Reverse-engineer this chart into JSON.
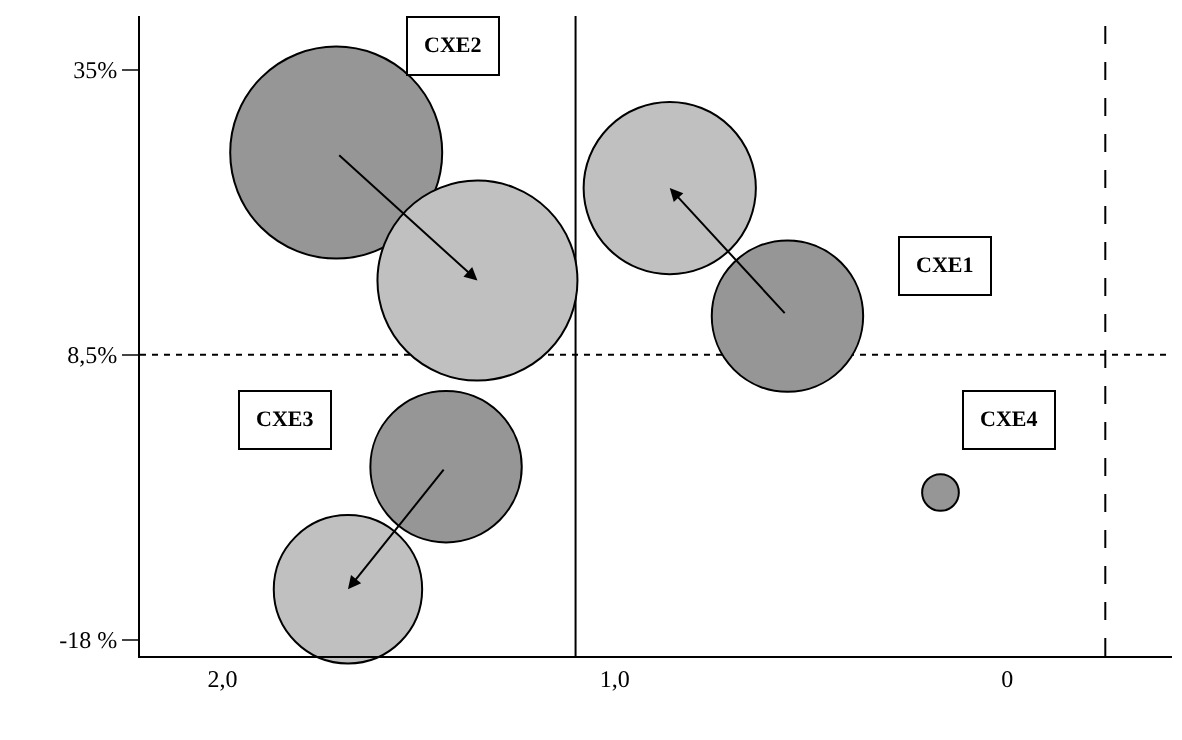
{
  "chart_data": {
    "type": "bubble",
    "xlim": [
      2.21,
      -0.42
    ],
    "ylim": [
      -19.5,
      40
    ],
    "xticks": [
      {
        "value": 2.0,
        "label": "2,0"
      },
      {
        "value": 1.0,
        "label": "1,0"
      },
      0
    ],
    "yticks": [
      {
        "value": 35,
        "label": "35%"
      },
      {
        "value": 8.5,
        "label": "8,5%"
      },
      {
        "value": -18,
        "label": "-18 %"
      }
    ],
    "series": [
      {
        "color": "#969696",
        "x": [
          0.56,
          1.71,
          1.43,
          0.17
        ],
        "values": [
          12.1,
          27.3,
          -1.9,
          -4.3
        ],
        "sizes": [
          0.51,
          1,
          0.51,
          0.03
        ]
      },
      {
        "color": "#c0c0c0",
        "x": [
          0.86,
          1.35,
          1.68,
          null
        ],
        "values": [
          24.0,
          15.4,
          -13.3,
          null
        ],
        "sizes": [
          0.66,
          0.89,
          0.49,
          null
        ]
      }
    ],
    "annotations": [
      "CXE1",
      "CXE2",
      "CXE3",
      "CXE4"
    ],
    "ref_lines": [
      {
        "axis": "x",
        "value": 1.1,
        "line_style": "solid",
        "color": "#000000"
      },
      {
        "axis": "y",
        "value": 8.5,
        "line_style": "dotted",
        "color": "#000000"
      },
      {
        "axis": "x",
        "value": -0.25,
        "line_style": "dashed",
        "color": "#000000"
      }
    ],
    "grid": false
  }
}
